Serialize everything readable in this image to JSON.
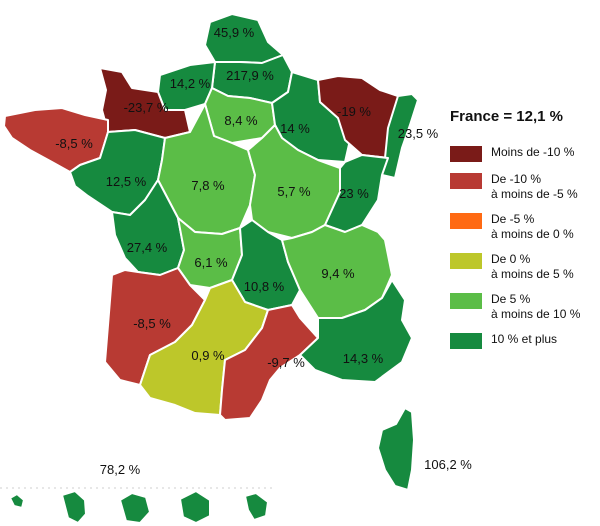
{
  "colors": {
    "very_negative": "#7a1b18",
    "negative": "#b83a33",
    "slightly_negative": "#ff6a13",
    "low_positive": "#bdc72a",
    "medium_positive": "#5bbd47",
    "high_positive": "#168a3f"
  },
  "legend": {
    "title": "France = 12,1 %",
    "items": [
      {
        "lines": [
          "Moins de -10 %"
        ],
        "color": "#7a1b18"
      },
      {
        "lines": [
          "De -10 %",
          "à moins de -5 %"
        ],
        "color": "#b83a33"
      },
      {
        "lines": [
          "De -5 %",
          "à moins de 0 %"
        ],
        "color": "#ff6a13"
      },
      {
        "lines": [
          "De 0 %",
          "à moins de 5 %"
        ],
        "color": "#bdc72a"
      },
      {
        "lines": [
          "De 5 %",
          "à moins de 10 %"
        ],
        "color": "#5bbd47"
      },
      {
        "lines": [
          "10 % et plus"
        ],
        "color": "#168a3f"
      }
    ]
  },
  "regions": [
    {
      "id": "nord",
      "value": "45,9 %",
      "color": "#168a3f"
    },
    {
      "id": "somme-aisne",
      "value": "217,9 %",
      "color": "#168a3f"
    },
    {
      "id": "seine-maritime",
      "value": "14,2 %",
      "color": "#168a3f"
    },
    {
      "id": "basse-normandie",
      "value": "-23,7 %",
      "color": "#7a1b18"
    },
    {
      "id": "bretagne",
      "value": "-8,5 %",
      "color": "#b83a33"
    },
    {
      "id": "ile-de-france",
      "value": "8,4 %",
      "color": "#5bbd47"
    },
    {
      "id": "champagne",
      "value": "14 %",
      "color": "#168a3f"
    },
    {
      "id": "lorraine",
      "value": "-19 %",
      "color": "#7a1b18"
    },
    {
      "id": "alsace",
      "value": "23,5 %",
      "color": "#168a3f"
    },
    {
      "id": "pays-de-la-loire",
      "value": "12,5 %",
      "color": "#168a3f"
    },
    {
      "id": "centre",
      "value": "7,8 %",
      "color": "#5bbd47"
    },
    {
      "id": "bourgogne",
      "value": "5,7 %",
      "color": "#5bbd47"
    },
    {
      "id": "franche-comte",
      "value": "23 %",
      "color": "#168a3f"
    },
    {
      "id": "poitou-charentes",
      "value": "27,4 %",
      "color": "#168a3f"
    },
    {
      "id": "limousin",
      "value": "6,1 %",
      "color": "#5bbd47"
    },
    {
      "id": "auvergne",
      "value": "10,8 %",
      "color": "#168a3f"
    },
    {
      "id": "rhone-alpes",
      "value": "9,4 %",
      "color": "#5bbd47"
    },
    {
      "id": "aquitaine",
      "value": "-8,5 %",
      "color": "#b83a33"
    },
    {
      "id": "midi-pyrenees",
      "value": "0,9 %",
      "color": "#bdc72a"
    },
    {
      "id": "languedoc",
      "value": "-9,7 %",
      "color": "#b83a33"
    },
    {
      "id": "paca",
      "value": "14,3 %",
      "color": "#168a3f"
    },
    {
      "id": "corse",
      "value": "106,2 %",
      "color": "#168a3f"
    },
    {
      "id": "outre-mer",
      "value": "78,2 %",
      "color": "#168a3f"
    }
  ]
}
